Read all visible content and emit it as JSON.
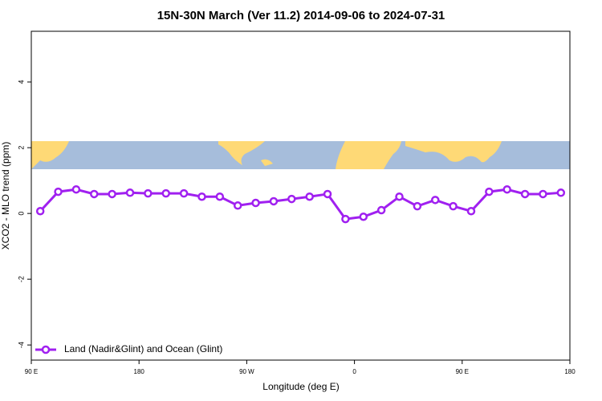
{
  "chart_data": {
    "type": "line",
    "title": "15N-30N March (Ver 11.2)   2014-09-06 to 2024-07-31",
    "x_label": "Longitude (deg E)",
    "y_label": "XCO2 - MLO trend (ppm)",
    "xlim": [
      90,
      540
    ],
    "xticks": [
      {
        "value": 90,
        "label": "90 E"
      },
      {
        "value": 180,
        "label": "180"
      },
      {
        "value": 270,
        "label": "90 W"
      },
      {
        "value": 360,
        "label": "0"
      },
      {
        "value": 450,
        "label": "90 E"
      },
      {
        "value": 540,
        "label": "180"
      }
    ],
    "ylim": [
      -4.46,
      5.54
    ],
    "yticks": [
      -4,
      -2,
      0,
      2,
      4
    ],
    "legend": "bottom-left",
    "series": [
      {
        "name": "Land (Nadir&Glint) and Ocean (Glint)",
        "color": "#a020f0",
        "x": [
          97.5,
          112.5,
          127.5,
          142.5,
          157.5,
          172.5,
          187.5,
          202.5,
          217.5,
          232.5,
          247.5,
          262.5,
          277.5,
          292.5,
          307.5,
          322.5,
          337.5,
          352.5,
          367.5,
          382.5,
          397.5,
          412.5,
          427.5,
          442.5,
          457.5,
          472.5,
          487.5,
          502.5,
          517.5,
          532.5
        ],
        "values": [
          0.07,
          0.66,
          0.73,
          0.59,
          0.59,
          0.63,
          0.61,
          0.61,
          0.61,
          0.51,
          0.51,
          0.24,
          0.32,
          0.37,
          0.44,
          0.51,
          0.59,
          -0.17,
          -0.1,
          0.1,
          0.51,
          0.22,
          0.41,
          0.22,
          0.07,
          0.66,
          0.73,
          0.59,
          0.59,
          0.63
        ]
      }
    ]
  }
}
